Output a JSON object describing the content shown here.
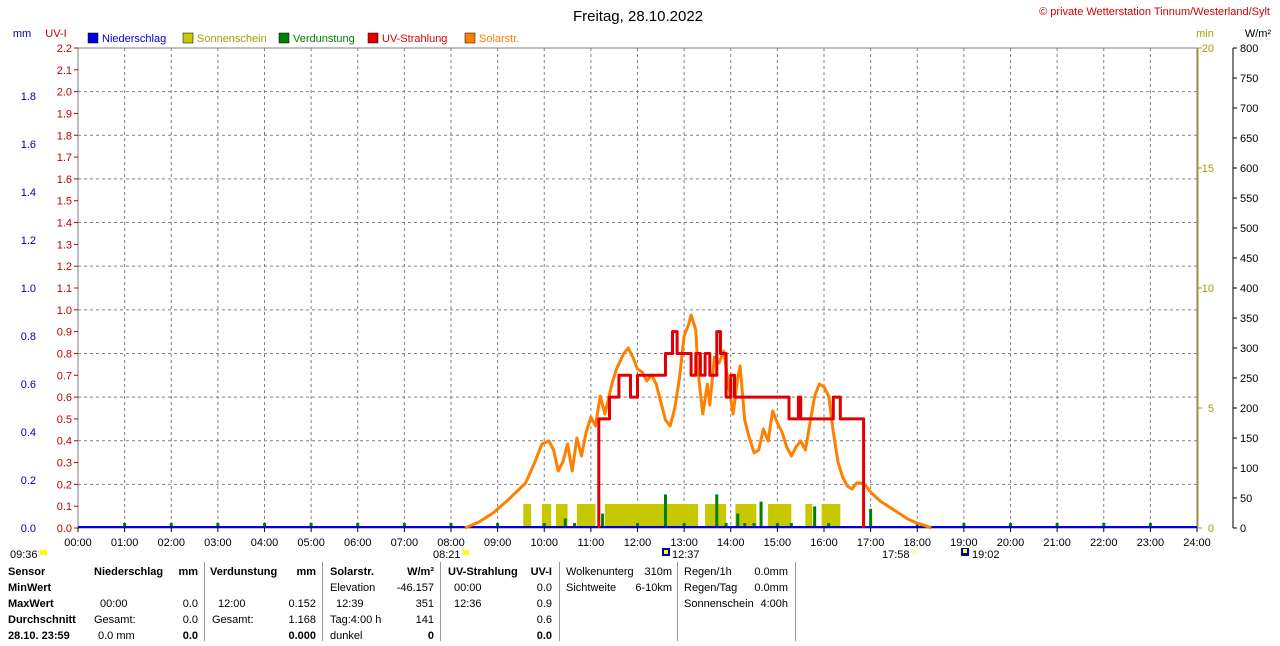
{
  "header": {
    "title": "Freitag, 28.10.2022",
    "copyright": "© private Wetterstation Tinnum/Westerland/Sylt",
    "unit_mm": "mm",
    "unit_uvi": "UV-I",
    "unit_min": "min",
    "unit_wm2": "W/m²"
  },
  "legend": [
    {
      "label": "Niederschlag",
      "color": "#0000dd"
    },
    {
      "label": "Sonnenschein",
      "color": "#c8c800"
    },
    {
      "label": "Verdunstung",
      "color": "#008000"
    },
    {
      "label": "UV-Strahlung",
      "color": "#e00000"
    },
    {
      "label": "Solarstr.",
      "color": "#ff8000"
    }
  ],
  "sun_markers": {
    "left_time": "09:36",
    "sunrise": "08:21",
    "noon": "12:37",
    "sunset": "17:58",
    "right_time": "19:02"
  },
  "chart_data": {
    "type": "line",
    "title": "Freitag, 28.10.2022",
    "x_ticks": [
      "00:00",
      "01:00",
      "02:00",
      "03:00",
      "04:00",
      "05:00",
      "06:00",
      "07:00",
      "08:00",
      "09:00",
      "10:00",
      "11:00",
      "12:00",
      "13:00",
      "14:00",
      "15:00",
      "16:00",
      "17:00",
      "18:00",
      "19:00",
      "20:00",
      "21:00",
      "22:00",
      "23:00",
      "24:00"
    ],
    "xlim_hours": [
      0,
      24
    ],
    "axes": {
      "mm": {
        "range": [
          0,
          2.0
        ],
        "ticks": [
          "0.0",
          "0.2",
          "0.4",
          "0.6",
          "0.8",
          "1.0",
          "1.2",
          "1.4",
          "1.6",
          "1.8"
        ],
        "color": "#0000aa"
      },
      "uvi": {
        "range": [
          0,
          2.2
        ],
        "ticks": [
          "0.0",
          "0.1",
          "0.2",
          "0.3",
          "0.4",
          "0.5",
          "0.6",
          "0.7",
          "0.8",
          "0.9",
          "1.0",
          "1.1",
          "1.2",
          "1.3",
          "1.4",
          "1.5",
          "1.6",
          "1.7",
          "1.8",
          "1.9",
          "2.0",
          "2.1",
          "2.2"
        ],
        "color": "#c00000"
      },
      "min": {
        "range": [
          0,
          20
        ],
        "ticks": [
          "0",
          "5",
          "10",
          "15",
          "20"
        ],
        "color": "#a0a000"
      },
      "wm2": {
        "range": [
          0,
          800
        ],
        "ticks": [
          "0",
          "50",
          "100",
          "150",
          "200",
          "250",
          "300",
          "350",
          "400",
          "450",
          "500",
          "550",
          "600",
          "650",
          "700",
          "750",
          "800"
        ],
        "color": "#000000"
      }
    },
    "grid": true,
    "series": [
      {
        "name": "Solarstr.",
        "axis": "wm2",
        "color": "#ff8000",
        "points": [
          [
            8.3,
            0
          ],
          [
            8.6,
            10
          ],
          [
            8.9,
            25
          ],
          [
            9.2,
            45
          ],
          [
            9.4,
            60
          ],
          [
            9.6,
            75
          ],
          [
            9.8,
            110
          ],
          [
            9.95,
            140
          ],
          [
            10.1,
            145
          ],
          [
            10.2,
            130
          ],
          [
            10.3,
            95
          ],
          [
            10.4,
            110
          ],
          [
            10.5,
            140
          ],
          [
            10.6,
            95
          ],
          [
            10.7,
            150
          ],
          [
            10.8,
            120
          ],
          [
            10.9,
            160
          ],
          [
            11.0,
            185
          ],
          [
            11.1,
            170
          ],
          [
            11.2,
            220
          ],
          [
            11.3,
            190
          ],
          [
            11.45,
            240
          ],
          [
            11.55,
            265
          ],
          [
            11.7,
            290
          ],
          [
            11.8,
            300
          ],
          [
            11.9,
            285
          ],
          [
            12.0,
            265
          ],
          [
            12.1,
            260
          ],
          [
            12.2,
            245
          ],
          [
            12.3,
            255
          ],
          [
            12.4,
            240
          ],
          [
            12.5,
            210
          ],
          [
            12.6,
            180
          ],
          [
            12.7,
            170
          ],
          [
            12.8,
            200
          ],
          [
            12.9,
            250
          ],
          [
            13.0,
            320
          ],
          [
            13.1,
            340
          ],
          [
            13.15,
            355
          ],
          [
            13.25,
            330
          ],
          [
            13.3,
            260
          ],
          [
            13.4,
            190
          ],
          [
            13.5,
            240
          ],
          [
            13.55,
            205
          ],
          [
            13.65,
            285
          ],
          [
            13.75,
            275
          ],
          [
            13.85,
            295
          ],
          [
            13.95,
            240
          ],
          [
            14.05,
            190
          ],
          [
            14.15,
            250
          ],
          [
            14.2,
            270
          ],
          [
            14.3,
            180
          ],
          [
            14.4,
            150
          ],
          [
            14.5,
            125
          ],
          [
            14.6,
            130
          ],
          [
            14.7,
            165
          ],
          [
            14.8,
            145
          ],
          [
            14.9,
            195
          ],
          [
            15.0,
            175
          ],
          [
            15.1,
            160
          ],
          [
            15.2,
            135
          ],
          [
            15.3,
            120
          ],
          [
            15.4,
            135
          ],
          [
            15.5,
            145
          ],
          [
            15.6,
            130
          ],
          [
            15.7,
            175
          ],
          [
            15.8,
            220
          ],
          [
            15.9,
            240
          ],
          [
            16.0,
            235
          ],
          [
            16.1,
            220
          ],
          [
            16.2,
            160
          ],
          [
            16.3,
            110
          ],
          [
            16.4,
            85
          ],
          [
            16.5,
            70
          ],
          [
            16.6,
            65
          ],
          [
            16.7,
            75
          ],
          [
            16.8,
            75
          ],
          [
            16.9,
            70
          ],
          [
            17.0,
            60
          ],
          [
            17.2,
            45
          ],
          [
            17.4,
            35
          ],
          [
            17.6,
            25
          ],
          [
            17.8,
            15
          ],
          [
            18.0,
            8
          ],
          [
            18.2,
            3
          ],
          [
            18.3,
            0
          ]
        ]
      },
      {
        "name": "UV-Strahlung",
        "axis": "uvi",
        "color": "#e00000",
        "points": [
          [
            11.17,
            0
          ],
          [
            11.17,
            0.5
          ],
          [
            11.4,
            0.5
          ],
          [
            11.4,
            0.6
          ],
          [
            11.6,
            0.6
          ],
          [
            11.6,
            0.7
          ],
          [
            11.85,
            0.7
          ],
          [
            11.85,
            0.6
          ],
          [
            12.0,
            0.6
          ],
          [
            12.0,
            0.7
          ],
          [
            12.6,
            0.7
          ],
          [
            12.6,
            0.8
          ],
          [
            12.75,
            0.8
          ],
          [
            12.75,
            0.9
          ],
          [
            12.85,
            0.9
          ],
          [
            12.85,
            0.8
          ],
          [
            13.15,
            0.8
          ],
          [
            13.15,
            0.7
          ],
          [
            13.25,
            0.7
          ],
          [
            13.25,
            0.8
          ],
          [
            13.35,
            0.8
          ],
          [
            13.35,
            0.7
          ],
          [
            13.45,
            0.7
          ],
          [
            13.45,
            0.8
          ],
          [
            13.55,
            0.8
          ],
          [
            13.55,
            0.7
          ],
          [
            13.7,
            0.7
          ],
          [
            13.7,
            0.9
          ],
          [
            13.78,
            0.9
          ],
          [
            13.78,
            0.8
          ],
          [
            13.9,
            0.8
          ],
          [
            13.9,
            0.6
          ],
          [
            14.0,
            0.6
          ],
          [
            14.0,
            0.7
          ],
          [
            14.08,
            0.7
          ],
          [
            14.08,
            0.6
          ],
          [
            15.25,
            0.6
          ],
          [
            15.25,
            0.5
          ],
          [
            15.45,
            0.5
          ],
          [
            15.45,
            0.6
          ],
          [
            15.5,
            0.6
          ],
          [
            15.5,
            0.5
          ],
          [
            16.2,
            0.5
          ],
          [
            16.2,
            0.6
          ],
          [
            16.35,
            0.6
          ],
          [
            16.35,
            0.5
          ],
          [
            16.85,
            0.5
          ],
          [
            16.85,
            0
          ]
        ]
      }
    ],
    "sunshine_bars": [
      [
        9.55,
        9.72
      ],
      [
        9.95,
        10.15
      ],
      [
        10.25,
        10.5
      ],
      [
        10.7,
        11.1
      ],
      [
        11.3,
        13.3
      ],
      [
        13.45,
        13.9
      ],
      [
        14.1,
        14.55
      ],
      [
        14.8,
        15.3
      ],
      [
        15.6,
        15.75
      ],
      [
        15.95,
        16.35
      ]
    ],
    "evaporation_spikes": [
      [
        1,
        0.01
      ],
      [
        2,
        0.01
      ],
      [
        3,
        0.01
      ],
      [
        4,
        0.01
      ],
      [
        5,
        0.01
      ],
      [
        6,
        0.01
      ],
      [
        7,
        0.01
      ],
      [
        8,
        0.01
      ],
      [
        9,
        0.01
      ],
      [
        10,
        0.01
      ],
      [
        10.45,
        0.04
      ],
      [
        10.65,
        0.01
      ],
      [
        11.25,
        0.06
      ],
      [
        12,
        0.01
      ],
      [
        12.6,
        0.14
      ],
      [
        13,
        0.01
      ],
      [
        13.7,
        0.14
      ],
      [
        13.9,
        0.01
      ],
      [
        14.15,
        0.06
      ],
      [
        14.3,
        0.02
      ],
      [
        14.5,
        0.01
      ],
      [
        14.65,
        0.11
      ],
      [
        15,
        0.01
      ],
      [
        15.3,
        0.02
      ],
      [
        15.8,
        0.09
      ],
      [
        16.1,
        0.01
      ],
      [
        17,
        0.08
      ],
      [
        18,
        0.01
      ],
      [
        19,
        0.01
      ],
      [
        20,
        0.01
      ],
      [
        21,
        0.01
      ],
      [
        22,
        0.01
      ],
      [
        23,
        0.01
      ]
    ]
  },
  "table": {
    "sensor": {
      "head": "Sensor",
      "rows": [
        "MinWert",
        "MaxWert",
        "Durchschnitt",
        "28.10. 23:59"
      ]
    },
    "niederschlag": {
      "head": "Niederschlag",
      "unit": "mm",
      "rows": [
        [
          "",
          ""
        ],
        [
          "00:00",
          "0.0"
        ],
        [
          "Gesamt:",
          "0.0"
        ],
        [
          "0.0 mm",
          "0.0"
        ]
      ]
    },
    "verdunstung": {
      "head": "Verdunstung",
      "unit": "mm",
      "rows": [
        [
          "",
          ""
        ],
        [
          "12:00",
          "0.152"
        ],
        [
          "Gesamt:",
          "1.168"
        ],
        [
          "",
          "0.000"
        ]
      ]
    },
    "solar": {
      "head": "Solarstr.",
      "unit": "W/m²",
      "rows": [
        [
          "Elevation",
          "-46.157"
        ],
        [
          "12:39",
          "351"
        ],
        [
          "Tag:4:00 h",
          "141"
        ],
        [
          "dunkel",
          "0"
        ]
      ]
    },
    "uv": {
      "head": "UV-Strahlung",
      "unit": "UV-I",
      "rows": [
        [
          "00:00",
          "0.0"
        ],
        [
          "12:36",
          "0.9"
        ],
        [
          "",
          "0.6"
        ],
        [
          "",
          "0.0"
        ]
      ]
    },
    "wolken": {
      "rows": [
        [
          "Wolkenunterg",
          "310m"
        ],
        [
          "Sichtweite",
          "6-10km"
        ]
      ]
    },
    "regen": {
      "rows": [
        [
          "Regen/1h",
          "0.0mm"
        ],
        [
          "Regen/Tag",
          "0.0mm"
        ],
        [
          "Sonnenschein",
          "4:00h"
        ]
      ]
    }
  }
}
